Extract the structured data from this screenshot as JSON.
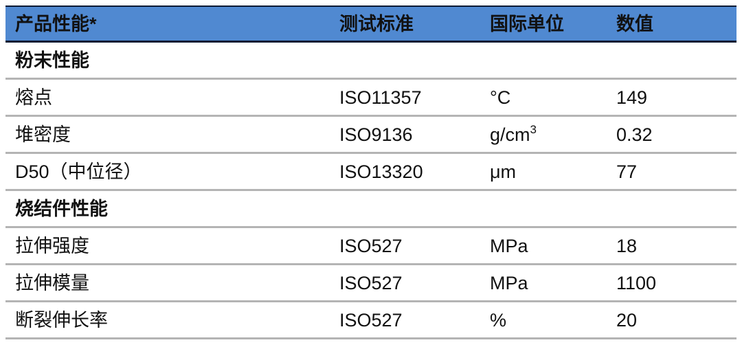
{
  "header": {
    "property": "产品性能*",
    "standard": "测试标准",
    "unit": "国际单位",
    "value": "数值"
  },
  "colors": {
    "header_bg": "#5089d1",
    "header_border": "#0d1a33",
    "row_divider": "#b4b4b4"
  },
  "sections": [
    {
      "title": "粉末性能",
      "rows": [
        {
          "property": "熔点",
          "standard": "ISO11357",
          "unit": "°C",
          "unit_sup": "",
          "value": "149"
        },
        {
          "property": "堆密度",
          "standard": "ISO9136",
          "unit": "g/cm",
          "unit_sup": "3",
          "value": "0.32"
        },
        {
          "property": "D50（中位径）",
          "standard": "ISO13320",
          "unit": "μm",
          "unit_sup": "",
          "value": "77"
        }
      ]
    },
    {
      "title": "烧结件性能",
      "rows": [
        {
          "property": "拉伸强度",
          "standard": "ISO527",
          "unit": "MPa",
          "unit_sup": "",
          "value": "18"
        },
        {
          "property": "拉伸模量",
          "standard": "ISO527",
          "unit": "MPa",
          "unit_sup": "",
          "value": "1100"
        },
        {
          "property": "断裂伸长率",
          "standard": "ISO527",
          "unit": "%",
          "unit_sup": "",
          "value": "20"
        }
      ]
    }
  ]
}
